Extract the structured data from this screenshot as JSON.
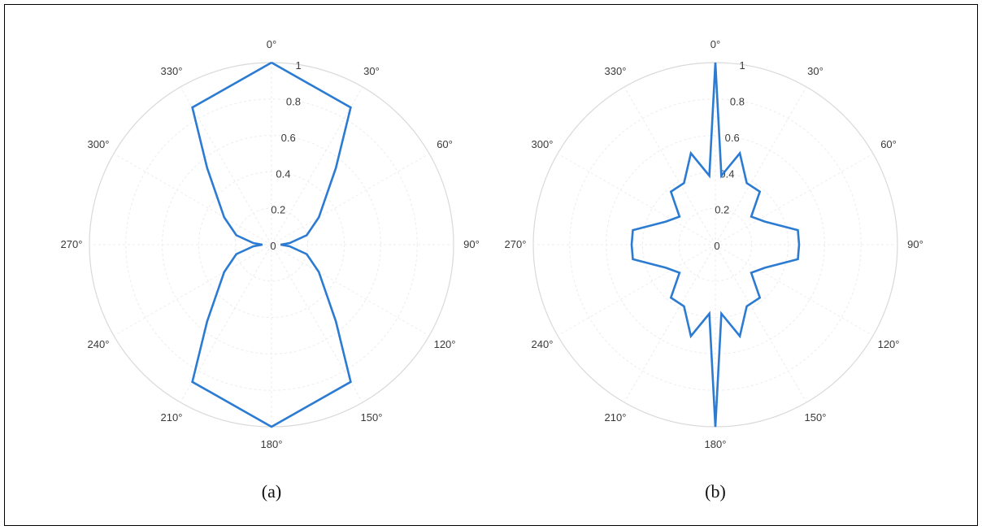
{
  "chart_data": [
    {
      "type": "polar-line",
      "caption": "(a)",
      "theta_ticks": [
        "0°",
        "30°",
        "60°",
        "90°",
        "120°",
        "150°",
        "180°",
        "210°",
        "240°",
        "270°",
        "300°",
        "330°"
      ],
      "r_ticks": [
        "0",
        "0.2",
        "0.4",
        "0.6",
        "0.8",
        "1"
      ],
      "rlim": [
        0,
        1
      ],
      "theta_zero": "top",
      "theta_direction": "clockwise",
      "grid": true,
      "line_color": "#2c7bd2",
      "series": [
        {
          "theta_deg": [
            0,
            30,
            40,
            60,
            75,
            85,
            90,
            95,
            105,
            120,
            140,
            150,
            180,
            210,
            220,
            240,
            255,
            265,
            270,
            275,
            285,
            300,
            320,
            330,
            360
          ],
          "r": [
            1.0,
            0.87,
            0.55,
            0.3,
            0.2,
            0.1,
            0.05,
            0.1,
            0.2,
            0.3,
            0.55,
            0.87,
            1.0,
            0.87,
            0.55,
            0.3,
            0.2,
            0.1,
            0.05,
            0.1,
            0.2,
            0.3,
            0.55,
            0.87,
            1.0
          ]
        }
      ]
    },
    {
      "type": "polar-line",
      "caption": "(b)",
      "theta_ticks": [
        "0°",
        "30°",
        "60°",
        "90°",
        "120°",
        "150°",
        "180°",
        "210°",
        "240°",
        "270°",
        "300°",
        "330°"
      ],
      "r_ticks": [
        "0",
        "0.2",
        "0.4",
        "0.6",
        "0.8",
        "1"
      ],
      "rlim": [
        0,
        1
      ],
      "theta_zero": "top",
      "theta_direction": "clockwise",
      "grid": true,
      "line_color": "#2c7bd2",
      "series": [
        {
          "theta_deg": [
            0,
            5,
            15,
            27,
            40,
            52,
            65,
            80,
            90,
            100,
            115,
            128,
            140,
            153,
            165,
            175,
            180,
            185,
            195,
            207,
            220,
            232,
            245,
            260,
            270,
            280,
            295,
            308,
            320,
            333,
            345,
            355,
            360
          ],
          "r": [
            1.0,
            0.38,
            0.52,
            0.38,
            0.38,
            0.25,
            0.3,
            0.46,
            0.46,
            0.46,
            0.3,
            0.25,
            0.38,
            0.38,
            0.52,
            0.38,
            1.0,
            0.38,
            0.52,
            0.38,
            0.38,
            0.25,
            0.3,
            0.46,
            0.46,
            0.46,
            0.3,
            0.25,
            0.38,
            0.38,
            0.52,
            0.38,
            1.0
          ]
        }
      ]
    }
  ]
}
